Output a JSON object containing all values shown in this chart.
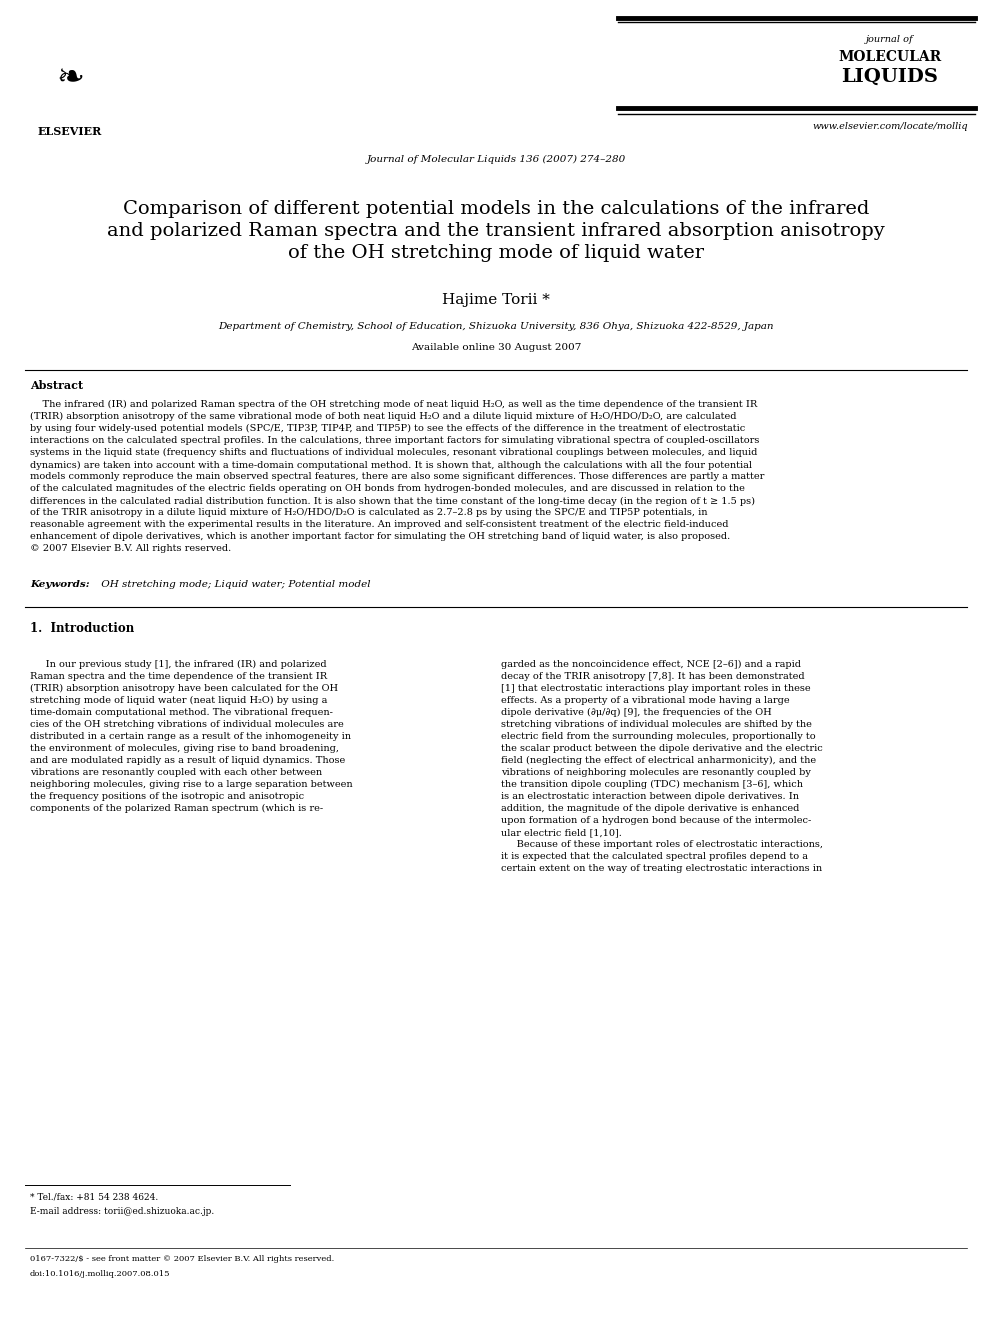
{
  "background_color": "#ffffff",
  "page_width": 9.92,
  "page_height": 13.23,
  "dpi": 100,
  "header": {
    "elsevier_text": "ELSEVIER",
    "journal_line1": "Journal of Molecular Liquids 136 (2007) 274–280",
    "journal_of": "journal of",
    "molecular": "MOLECULAR",
    "liquids": "LIQUIDS",
    "website": "www.elsevier.com/locate/molliq"
  },
  "title_line1": "Comparison of different potential models in the calculations of the infrared",
  "title_line2": "and polarized Raman spectra and the transient infrared absorption anisotropy",
  "title_line3": "of the OH stretching mode of liquid water",
  "author": "Hajime Torii *",
  "affiliation": "Department of Chemistry, School of Education, Shizuoka University, 836 Ohya, Shizuoka 422-8529, Japan",
  "available_online": "Available online 30 August 2007",
  "abstract_title": "Abstract",
  "abstract_indent": "    The infrared (IR) and polarized Raman spectra of the OH stretching mode of neat liquid H₂O, as well as the time dependence of the transient IR",
  "abstract_lines": [
    "(TRIR) absorption anisotropy of the same vibrational mode of both neat liquid H₂O and a dilute liquid mixture of H₂O/HDO/D₂O, are calculated",
    "by using four widely-used potential models (SPC/E, TIP3P, TIP4P, and TIP5P) to see the effects of the difference in the treatment of electrostatic",
    "interactions on the calculated spectral profiles. In the calculations, three important factors for simulating vibrational spectra of coupled-oscillators",
    "systems in the liquid state (frequency shifts and fluctuations of individual molecules, resonant vibrational couplings between molecules, and liquid",
    "dynamics) are taken into account with a time-domain computational method. It is shown that, although the calculations with all the four potential",
    "models commonly reproduce the main observed spectral features, there are also some significant differences. Those differences are partly a matter",
    "of the calculated magnitudes of the electric fields operating on OH bonds from hydrogen-bonded molecules, and are discussed in relation to the",
    "differences in the calculated radial distribution function. It is also shown that the time constant of the long-time decay (in the region of t ≥ 1.5 ps)",
    "of the TRIR anisotropy in a dilute liquid mixture of H₂O/HDO/D₂O is calculated as 2.7–2.8 ps by using the SPC/E and TIP5P potentials, in",
    "reasonable agreement with the experimental results in the literature. An improved and self-consistent treatment of the electric field-induced",
    "enhancement of dipole derivatives, which is another important factor for simulating the OH stretching band of liquid water, is also proposed.",
    "© 2007 Elsevier B.V. All rights reserved."
  ],
  "keywords_label": "Keywords:",
  "keywords_text": " OH stretching mode; Liquid water; Potential model",
  "section1_title": "1.  Introduction",
  "col1_lines": [
    "     In our previous study [1], the infrared (IR) and polarized",
    "Raman spectra and the time dependence of the transient IR",
    "(TRIR) absorption anisotropy have been calculated for the OH",
    "stretching mode of liquid water (neat liquid H₂O) by using a",
    "time-domain computational method. The vibrational frequen-",
    "cies of the OH stretching vibrations of individual molecules are",
    "distributed in a certain range as a result of the inhomogeneity in",
    "the environment of molecules, giving rise to band broadening,",
    "and are modulated rapidly as a result of liquid dynamics. Those",
    "vibrations are resonantly coupled with each other between",
    "neighboring molecules, giving rise to a large separation between",
    "the frequency positions of the isotropic and anisotropic",
    "components of the polarized Raman spectrum (which is re-"
  ],
  "col2_lines": [
    "garded as the noncoincidence effect, NCE [2–6]) and a rapid",
    "decay of the TRIR anisotropy [7,8]. It has been demonstrated",
    "[1] that electrostatic interactions play important roles in these",
    "effects. As a property of a vibrational mode having a large",
    "dipole derivative (∂μ/∂q) [9], the frequencies of the OH",
    "stretching vibrations of individual molecules are shifted by the",
    "electric field from the surrounding molecules, proportionally to",
    "the scalar product between the dipole derivative and the electric",
    "field (neglecting the effect of electrical anharmonicity), and the",
    "vibrations of neighboring molecules are resonantly coupled by",
    "the transition dipole coupling (TDC) mechanism [3–6], which",
    "is an electrostatic interaction between dipole derivatives. In",
    "addition, the magnitude of the dipole derivative is enhanced",
    "upon formation of a hydrogen bond because of the intermolec-",
    "ular electric field [1,10].",
    "     Because of these important roles of electrostatic interactions,",
    "it is expected that the calculated spectral profiles depend to a",
    "certain extent on the way of treating electrostatic interactions in"
  ],
  "footnote_star": "* Tel./fax: +81 54 238 4624.",
  "footnote_email": "E-mail address: torii@ed.shizuoka.ac.jp.",
  "footer_line1": "0167-7322/$ - see front matter © 2007 Elsevier B.V. All rights reserved.",
  "footer_line2": "doi:10.1016/j.molliq.2007.08.015"
}
